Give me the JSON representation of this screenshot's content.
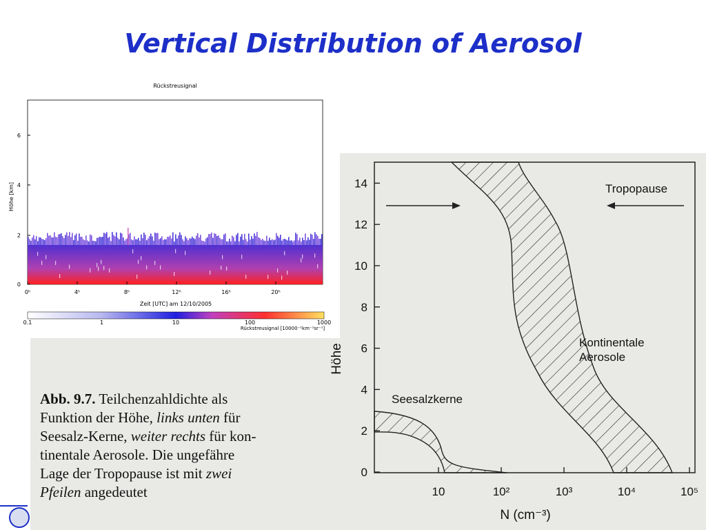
{
  "title": "Vertical Distribution of Aerosol",
  "lidar": {
    "title": "Rückstreusignal",
    "y_label": "Höhe [km]",
    "y_ticks": [
      "0",
      "2",
      "4",
      "6"
    ],
    "x_ticks": [
      "0ʰ",
      "4ʰ",
      "8ʰ",
      "12ʰ",
      "16ʰ",
      "20ʰ"
    ],
    "x_label": "Zeit [UTC] am 12/10/2005",
    "colorbar_ticks": [
      "0.1",
      "1",
      "10",
      "100",
      "1000"
    ],
    "colorbar_label": "Rückstreusignal [10000⁻¹km⁻¹sr⁻¹]"
  },
  "figure": {
    "caption": [
      [
        "Abb. 9.7.",
        " Teilchenzahldichte als"
      ],
      [
        "Funktion der Höhe, ",
        "links unten",
        " für"
      ],
      [
        "Seesalz-Kerne, ",
        "weiter rechts",
        " für kon-"
      ],
      [
        "tinentale Aerosole. Die ungefähre"
      ],
      [
        "Lage der Tropopause ist mit ",
        "zwei"
      ],
      [
        "Pfeilen",
        " angedeutet"
      ]
    ],
    "y_label": "Höhe",
    "x_label": "N (cm⁻³)",
    "y_ticks": [
      "0",
      "2",
      "4",
      "6",
      "8",
      "10",
      "12",
      "14"
    ],
    "x_ticks": [
      "10",
      "10²",
      "10³",
      "10⁴",
      "10⁵"
    ],
    "tropopause": "Tropopause",
    "continental": [
      "Kontinentale",
      "Aerosole"
    ],
    "seasalt": "Seesalzkerne"
  }
}
